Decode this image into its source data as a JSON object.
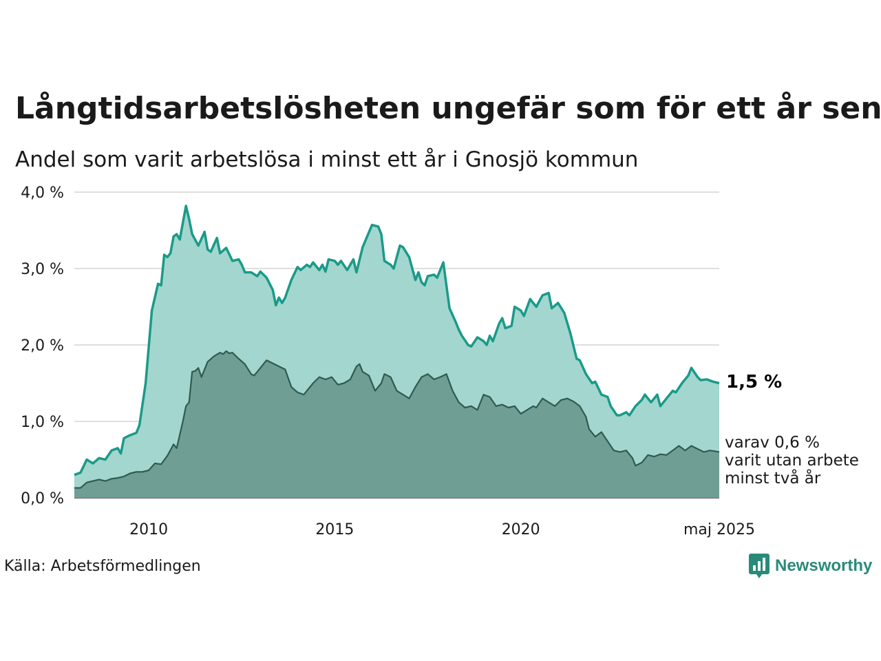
{
  "header": {
    "title": "Långtidsarbetslösheten ungefär som för ett år sen",
    "subtitle": "Andel som varit arbetslösa i minst ett år i Gnosjö kommun"
  },
  "footer": {
    "source": "Källa: Arbetsförmedlingen",
    "brand": "Newsworthy"
  },
  "colors": {
    "total_line": "#1a9a87",
    "total_fill": "#a3d6cf",
    "long_line": "#2f5a50",
    "long_fill": "#6f9e95",
    "grid": "#dedede"
  },
  "labels": {
    "total_value": "1,5 %",
    "long_line1": "varav 0,6 %",
    "long_line2": "varit utan arbete",
    "long_line3": "minst två år"
  },
  "chart_data": {
    "type": "area",
    "x_unit": "month",
    "x_start": "2008-01",
    "x_end": "2025-05",
    "ylim": [
      0,
      4
    ],
    "y_ticks": [
      0,
      1,
      2,
      3,
      4
    ],
    "y_tick_labels": [
      "0,0 %",
      "1,0 %",
      "2,0 %",
      "3,0 %",
      "4,0 %"
    ],
    "x_ticks": [
      {
        "at": "2010-01",
        "label": "2010"
      },
      {
        "at": "2015-01",
        "label": "2015"
      },
      {
        "at": "2020-01",
        "label": "2020"
      },
      {
        "at": "2025-05",
        "label": "maj 2025"
      }
    ],
    "grid": true,
    "series": [
      {
        "key": "total",
        "points": [
          [
            "2008-01",
            0.3
          ],
          [
            "2008-03",
            0.33
          ],
          [
            "2008-05",
            0.5
          ],
          [
            "2008-07",
            0.45
          ],
          [
            "2008-09",
            0.52
          ],
          [
            "2008-11",
            0.5
          ],
          [
            "2009-01",
            0.62
          ],
          [
            "2009-03",
            0.65
          ],
          [
            "2009-04",
            0.58
          ],
          [
            "2009-05",
            0.78
          ],
          [
            "2009-07",
            0.82
          ],
          [
            "2009-09",
            0.85
          ],
          [
            "2009-10",
            0.95
          ],
          [
            "2009-12",
            1.5
          ],
          [
            "2010-02",
            2.45
          ],
          [
            "2010-04",
            2.8
          ],
          [
            "2010-05",
            2.78
          ],
          [
            "2010-06",
            3.18
          ],
          [
            "2010-07",
            3.15
          ],
          [
            "2010-08",
            3.2
          ],
          [
            "2010-09",
            3.42
          ],
          [
            "2010-10",
            3.45
          ],
          [
            "2010-11",
            3.38
          ],
          [
            "2011-01",
            3.82
          ],
          [
            "2011-02",
            3.65
          ],
          [
            "2011-03",
            3.45
          ],
          [
            "2011-05",
            3.3
          ],
          [
            "2011-07",
            3.48
          ],
          [
            "2011-08",
            3.25
          ],
          [
            "2011-09",
            3.22
          ],
          [
            "2011-11",
            3.4
          ],
          [
            "2011-12",
            3.2
          ],
          [
            "2012-02",
            3.27
          ],
          [
            "2012-04",
            3.1
          ],
          [
            "2012-06",
            3.12
          ],
          [
            "2012-07",
            3.05
          ],
          [
            "2012-08",
            2.95
          ],
          [
            "2012-10",
            2.95
          ],
          [
            "2012-12",
            2.9
          ],
          [
            "2013-01",
            2.96
          ],
          [
            "2013-03",
            2.88
          ],
          [
            "2013-05",
            2.72
          ],
          [
            "2013-06",
            2.52
          ],
          [
            "2013-07",
            2.62
          ],
          [
            "2013-08",
            2.55
          ],
          [
            "2013-09",
            2.62
          ],
          [
            "2013-11",
            2.85
          ],
          [
            "2014-01",
            3.02
          ],
          [
            "2014-02",
            2.98
          ],
          [
            "2014-04",
            3.05
          ],
          [
            "2014-05",
            3.02
          ],
          [
            "2014-06",
            3.08
          ],
          [
            "2014-08",
            2.98
          ],
          [
            "2014-09",
            3.05
          ],
          [
            "2014-10",
            2.96
          ],
          [
            "2014-11",
            3.12
          ],
          [
            "2015-01",
            3.1
          ],
          [
            "2015-02",
            3.05
          ],
          [
            "2015-03",
            3.1
          ],
          [
            "2015-05",
            2.98
          ],
          [
            "2015-07",
            3.12
          ],
          [
            "2015-08",
            2.95
          ],
          [
            "2015-10",
            3.28
          ],
          [
            "2016-01",
            3.57
          ],
          [
            "2016-03",
            3.55
          ],
          [
            "2016-04",
            3.45
          ],
          [
            "2016-05",
            3.1
          ],
          [
            "2016-07",
            3.05
          ],
          [
            "2016-08",
            3.0
          ],
          [
            "2016-10",
            3.3
          ],
          [
            "2016-11",
            3.28
          ],
          [
            "2017-01",
            3.15
          ],
          [
            "2017-02",
            3.0
          ],
          [
            "2017-03",
            2.85
          ],
          [
            "2017-04",
            2.95
          ],
          [
            "2017-05",
            2.82
          ],
          [
            "2017-06",
            2.78
          ],
          [
            "2017-07",
            2.9
          ],
          [
            "2017-09",
            2.92
          ],
          [
            "2017-10",
            2.88
          ],
          [
            "2017-12",
            3.08
          ],
          [
            "2018-02",
            2.48
          ],
          [
            "2018-04",
            2.3
          ],
          [
            "2018-05",
            2.2
          ],
          [
            "2018-06",
            2.12
          ],
          [
            "2018-08",
            2.0
          ],
          [
            "2018-09",
            1.98
          ],
          [
            "2018-11",
            2.1
          ],
          [
            "2019-01",
            2.05
          ],
          [
            "2019-02",
            2.0
          ],
          [
            "2019-03",
            2.12
          ],
          [
            "2019-04",
            2.05
          ],
          [
            "2019-06",
            2.28
          ],
          [
            "2019-07",
            2.35
          ],
          [
            "2019-08",
            2.22
          ],
          [
            "2019-10",
            2.25
          ],
          [
            "2019-11",
            2.5
          ],
          [
            "2020-01",
            2.45
          ],
          [
            "2020-02",
            2.38
          ],
          [
            "2020-04",
            2.6
          ],
          [
            "2020-05",
            2.55
          ],
          [
            "2020-06",
            2.5
          ],
          [
            "2020-08",
            2.65
          ],
          [
            "2020-10",
            2.68
          ],
          [
            "2020-11",
            2.48
          ],
          [
            "2021-01",
            2.55
          ],
          [
            "2021-03",
            2.42
          ],
          [
            "2021-05",
            2.15
          ],
          [
            "2021-07",
            1.82
          ],
          [
            "2021-08",
            1.8
          ],
          [
            "2021-10",
            1.62
          ],
          [
            "2021-12",
            1.5
          ],
          [
            "2022-01",
            1.52
          ],
          [
            "2022-03",
            1.35
          ],
          [
            "2022-05",
            1.32
          ],
          [
            "2022-06",
            1.2
          ],
          [
            "2022-08",
            1.08
          ],
          [
            "2022-09",
            1.08
          ],
          [
            "2022-11",
            1.12
          ],
          [
            "2022-12",
            1.08
          ],
          [
            "2023-02",
            1.2
          ],
          [
            "2023-04",
            1.28
          ],
          [
            "2023-05",
            1.35
          ],
          [
            "2023-07",
            1.25
          ],
          [
            "2023-09",
            1.35
          ],
          [
            "2023-10",
            1.2
          ],
          [
            "2023-12",
            1.3
          ],
          [
            "2024-02",
            1.4
          ],
          [
            "2024-03",
            1.38
          ],
          [
            "2024-05",
            1.5
          ],
          [
            "2024-07",
            1.6
          ],
          [
            "2024-08",
            1.7
          ],
          [
            "2024-10",
            1.58
          ],
          [
            "2024-11",
            1.54
          ],
          [
            "2025-01",
            1.55
          ],
          [
            "2025-03",
            1.52
          ],
          [
            "2025-05",
            1.5
          ]
        ]
      },
      {
        "key": "long",
        "points": [
          [
            "2008-01",
            0.13
          ],
          [
            "2008-03",
            0.13
          ],
          [
            "2008-05",
            0.2
          ],
          [
            "2008-07",
            0.22
          ],
          [
            "2008-09",
            0.24
          ],
          [
            "2008-11",
            0.22
          ],
          [
            "2009-01",
            0.25
          ],
          [
            "2009-03",
            0.26
          ],
          [
            "2009-05",
            0.28
          ],
          [
            "2009-07",
            0.32
          ],
          [
            "2009-09",
            0.34
          ],
          [
            "2009-11",
            0.34
          ],
          [
            "2010-01",
            0.36
          ],
          [
            "2010-03",
            0.45
          ],
          [
            "2010-05",
            0.44
          ],
          [
            "2010-07",
            0.55
          ],
          [
            "2010-09",
            0.7
          ],
          [
            "2010-10",
            0.65
          ],
          [
            "2010-12",
            1.0
          ],
          [
            "2011-01",
            1.2
          ],
          [
            "2011-02",
            1.25
          ],
          [
            "2011-03",
            1.65
          ],
          [
            "2011-04",
            1.66
          ],
          [
            "2011-05",
            1.7
          ],
          [
            "2011-06",
            1.58
          ],
          [
            "2011-08",
            1.78
          ],
          [
            "2011-10",
            1.85
          ],
          [
            "2011-12",
            1.9
          ],
          [
            "2012-01",
            1.88
          ],
          [
            "2012-02",
            1.92
          ],
          [
            "2012-03",
            1.89
          ],
          [
            "2012-04",
            1.9
          ],
          [
            "2012-06",
            1.82
          ],
          [
            "2012-08",
            1.75
          ],
          [
            "2012-10",
            1.62
          ],
          [
            "2012-11",
            1.6
          ],
          [
            "2013-01",
            1.7
          ],
          [
            "2013-03",
            1.8
          ],
          [
            "2013-05",
            1.76
          ],
          [
            "2013-07",
            1.72
          ],
          [
            "2013-09",
            1.68
          ],
          [
            "2013-11",
            1.45
          ],
          [
            "2014-01",
            1.38
          ],
          [
            "2014-03",
            1.35
          ],
          [
            "2014-04",
            1.4
          ],
          [
            "2014-06",
            1.5
          ],
          [
            "2014-08",
            1.58
          ],
          [
            "2014-10",
            1.55
          ],
          [
            "2014-12",
            1.58
          ],
          [
            "2015-02",
            1.48
          ],
          [
            "2015-04",
            1.5
          ],
          [
            "2015-06",
            1.55
          ],
          [
            "2015-08",
            1.72
          ],
          [
            "2015-09",
            1.75
          ],
          [
            "2015-10",
            1.65
          ],
          [
            "2015-12",
            1.6
          ],
          [
            "2016-02",
            1.4
          ],
          [
            "2016-04",
            1.5
          ],
          [
            "2016-05",
            1.62
          ],
          [
            "2016-07",
            1.58
          ],
          [
            "2016-09",
            1.4
          ],
          [
            "2016-11",
            1.35
          ],
          [
            "2017-01",
            1.3
          ],
          [
            "2017-03",
            1.45
          ],
          [
            "2017-05",
            1.58
          ],
          [
            "2017-07",
            1.62
          ],
          [
            "2017-09",
            1.55
          ],
          [
            "2017-11",
            1.58
          ],
          [
            "2018-01",
            1.62
          ],
          [
            "2018-03",
            1.4
          ],
          [
            "2018-05",
            1.25
          ],
          [
            "2018-07",
            1.18
          ],
          [
            "2018-09",
            1.2
          ],
          [
            "2018-11",
            1.15
          ],
          [
            "2019-01",
            1.35
          ],
          [
            "2019-03",
            1.32
          ],
          [
            "2019-05",
            1.2
          ],
          [
            "2019-07",
            1.22
          ],
          [
            "2019-09",
            1.18
          ],
          [
            "2019-11",
            1.2
          ],
          [
            "2020-01",
            1.1
          ],
          [
            "2020-03",
            1.15
          ],
          [
            "2020-05",
            1.2
          ],
          [
            "2020-06",
            1.18
          ],
          [
            "2020-08",
            1.3
          ],
          [
            "2020-10",
            1.25
          ],
          [
            "2020-12",
            1.2
          ],
          [
            "2021-02",
            1.28
          ],
          [
            "2021-04",
            1.3
          ],
          [
            "2021-06",
            1.26
          ],
          [
            "2021-08",
            1.2
          ],
          [
            "2021-10",
            1.06
          ],
          [
            "2021-11",
            0.9
          ],
          [
            "2022-01",
            0.8
          ],
          [
            "2022-03",
            0.86
          ],
          [
            "2022-05",
            0.74
          ],
          [
            "2022-07",
            0.62
          ],
          [
            "2022-09",
            0.6
          ],
          [
            "2022-11",
            0.62
          ],
          [
            "2023-01",
            0.52
          ],
          [
            "2023-02",
            0.42
          ],
          [
            "2023-04",
            0.46
          ],
          [
            "2023-06",
            0.56
          ],
          [
            "2023-08",
            0.54
          ],
          [
            "2023-10",
            0.57
          ],
          [
            "2023-12",
            0.56
          ],
          [
            "2024-02",
            0.62
          ],
          [
            "2024-04",
            0.68
          ],
          [
            "2024-06",
            0.62
          ],
          [
            "2024-08",
            0.68
          ],
          [
            "2024-10",
            0.64
          ],
          [
            "2024-12",
            0.6
          ],
          [
            "2025-02",
            0.62
          ],
          [
            "2025-05",
            0.6
          ]
        ]
      }
    ]
  }
}
